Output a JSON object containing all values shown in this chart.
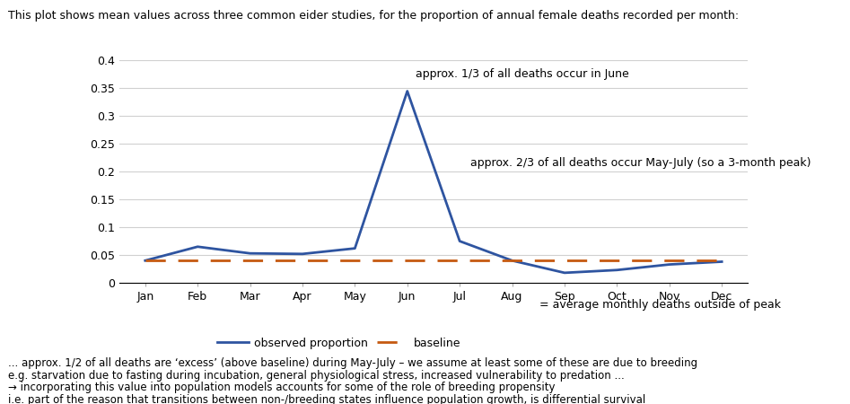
{
  "months": [
    "Jan",
    "Feb",
    "Mar",
    "Apr",
    "May",
    "Jun",
    "Jul",
    "Aug",
    "Sep",
    "Oct",
    "Nov",
    "Dec"
  ],
  "observed": [
    0.04,
    0.065,
    0.053,
    0.052,
    0.062,
    0.345,
    0.075,
    0.04,
    0.018,
    0.023,
    0.033,
    0.038
  ],
  "baseline": [
    0.04,
    0.04,
    0.04,
    0.04,
    0.04,
    0.04,
    0.04,
    0.04,
    0.04,
    0.04,
    0.04,
    0.04
  ],
  "observed_color": "#2E54A0",
  "baseline_color": "#C55A11",
  "ylim": [
    0,
    0.4
  ],
  "yticks": [
    0,
    0.05,
    0.1,
    0.15,
    0.2,
    0.25,
    0.3,
    0.35,
    0.4
  ],
  "title": "This plot shows mean values across three common eider studies, for the proportion of annual female deaths recorded per month:",
  "annotation1": "approx. 1/3 of all deaths occur in June",
  "annotation2": "approx. 2/3 of all deaths occur May-July (so a 3-month peak)",
  "legend_observed": "observed proportion",
  "legend_baseline": "baseline",
  "legend_suffix": "= average monthly deaths outside of peak",
  "footnote1": "... approx. 1/2 of all deaths are ‘excess’ (above baseline) during May-July – we assume at least some of these are due to breeding",
  "footnote2": "e.g. starvation due to fasting during incubation, general physiological stress, increased vulnerability to predation ...",
  "footnote3": "→ incorporating this value into population models accounts for some of the role of breeding propensity",
  "footnote4": "i.e. part of the reason that transitions between non-/breeding states influence population growth, is differential survival"
}
